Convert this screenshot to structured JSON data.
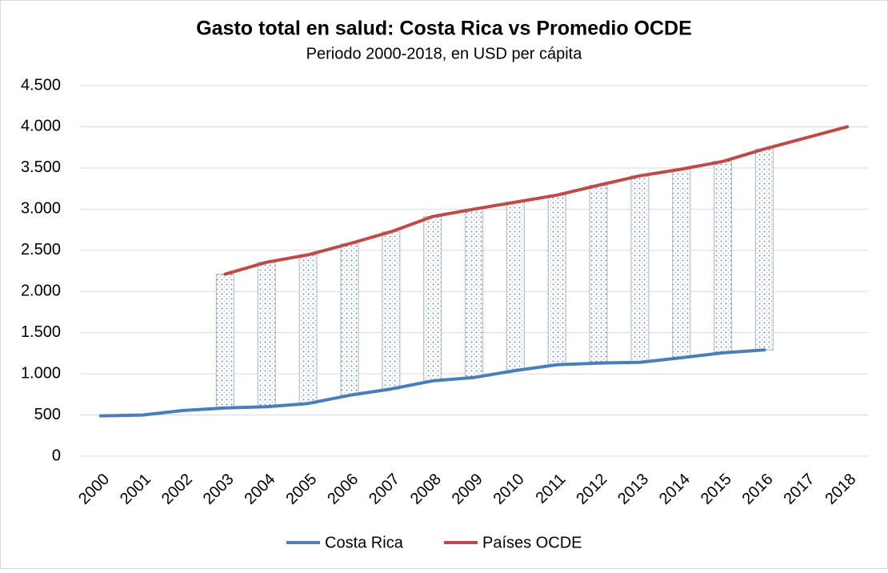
{
  "chart_data": {
    "type": "line",
    "title": "Gasto total en salud: Costa Rica vs Promedio OCDE",
    "subtitle": "Periodo 2000-2018, en USD per cápita",
    "categories": [
      "2000",
      "2001",
      "2002",
      "2003",
      "2004",
      "2005",
      "2006",
      "2007",
      "2008",
      "2009",
      "2010",
      "2011",
      "2012",
      "2013",
      "2014",
      "2015",
      "2016",
      "2017",
      "2018"
    ],
    "series": [
      {
        "name": "Costa Rica",
        "color": "#4a7ebb",
        "values": [
          490,
          500,
          555,
          585,
          600,
          640,
          740,
          815,
          915,
          955,
          1040,
          1110,
          1130,
          1140,
          1195,
          1255,
          1290,
          null,
          null
        ]
      },
      {
        "name": "Países OCDE",
        "color": "#be4b48",
        "values": [
          null,
          null,
          null,
          2210,
          2355,
          2445,
          2580,
          2725,
          2910,
          3000,
          3085,
          3170,
          3290,
          3405,
          3485,
          3580,
          3730,
          3865,
          4000
        ]
      }
    ],
    "ylim": [
      0,
      4500
    ],
    "yticks": [
      0,
      500,
      {
        "value": 1000,
        "label": "1.000"
      },
      {
        "value": 1500,
        "label": "1.500"
      },
      {
        "value": 2000,
        "label": "2.000"
      },
      {
        "value": 2500,
        "label": "2.500"
      },
      {
        "value": 3000,
        "label": "3.000"
      },
      {
        "value": 3500,
        "label": "3.500"
      },
      {
        "value": 4000,
        "label": "4.000"
      },
      {
        "value": 4500,
        "label": "4.500"
      }
    ],
    "grid": true,
    "legend": "bottom"
  }
}
